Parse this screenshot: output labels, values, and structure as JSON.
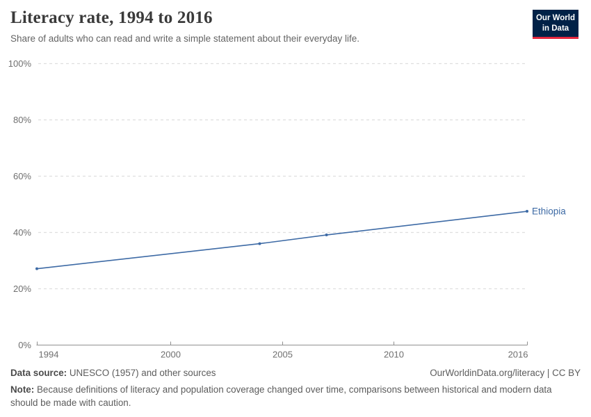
{
  "logo": {
    "line1": "Our World",
    "line2": "in Data"
  },
  "chart_data": {
    "type": "line",
    "title": "Literacy rate, 1994 to 2016",
    "subtitle": "Share of adults who can read and write a simple statement about their everyday life.",
    "xlim": [
      1994,
      2016
    ],
    "ylim": [
      0,
      100
    ],
    "x_ticks": [
      1994,
      2000,
      2005,
      2010,
      2016
    ],
    "y_ticks": [
      0,
      20,
      40,
      60,
      80,
      100
    ],
    "y_tick_suffix": "%",
    "grid": "horizontal-dashed",
    "legend_position": "end-of-line-label",
    "series": [
      {
        "name": "Ethiopia",
        "color": "#3d6aa5",
        "points": [
          {
            "year": 1994,
            "value": 27.0
          },
          {
            "year": 2004,
            "value": 35.9
          },
          {
            "year": 2007,
            "value": 39.0
          },
          {
            "year": 2016,
            "value": 47.4
          }
        ]
      }
    ]
  },
  "footer": {
    "source_label": "Data source: ",
    "source_text": "UNESCO (1957) and other sources",
    "attribution": "OurWorldinData.org/literacy | CC BY",
    "note_label": "Note: ",
    "note_text": "Because definitions of literacy and population coverage changed over time, comparisons between historical and modern data should be made with caution."
  },
  "colors": {
    "accent": "#3d6aa5",
    "logo_bg": "#002147",
    "logo_accent": "#e5273e",
    "grid": "#dedede",
    "axis": "#8f8f8f",
    "tick_text": "#6f6f6f"
  }
}
